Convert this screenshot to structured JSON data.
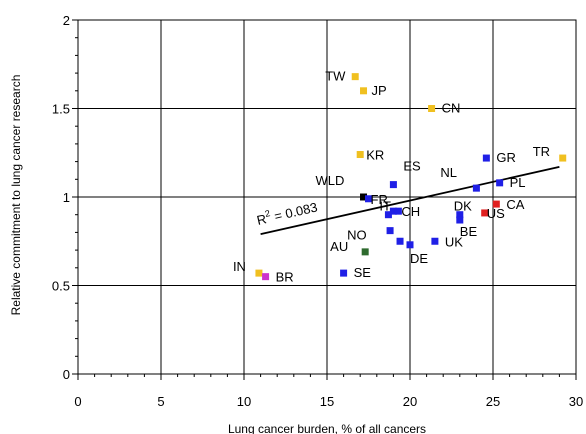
{
  "chart_data": {
    "type": "scatter",
    "xlabel": "Lung cancer burden, % of all cancers",
    "ylabel": "Relative commitment to lung cancer research",
    "xlim": [
      0,
      30
    ],
    "ylim": [
      0,
      2
    ],
    "xticks": [
      "0",
      "5",
      "10",
      "15",
      "20",
      "25",
      "30"
    ],
    "yticks": [
      "0",
      "0.5",
      "1",
      "1.5",
      "2"
    ],
    "grid": true,
    "colors": {
      "yellow": "#f0c020",
      "blue": "#1f1fe6",
      "red": "#e02020",
      "green": "#2e6a2e",
      "magenta": "#cc33cc",
      "black": "#000000"
    },
    "points": [
      {
        "label": "TW",
        "x": 16.7,
        "y": 1.68,
        "color": "yellow"
      },
      {
        "label": "JP",
        "x": 17.2,
        "y": 1.6,
        "color": "yellow"
      },
      {
        "label": "CN",
        "x": 21.3,
        "y": 1.5,
        "color": "yellow"
      },
      {
        "label": "KR",
        "x": 17.0,
        "y": 1.24,
        "color": "yellow"
      },
      {
        "label": "TR",
        "x": 29.2,
        "y": 1.22,
        "color": "yellow"
      },
      {
        "label": "IN",
        "x": 10.9,
        "y": 0.57,
        "color": "yellow"
      },
      {
        "label": "GR",
        "x": 24.6,
        "y": 1.22,
        "color": "blue"
      },
      {
        "label": "ES",
        "x": 19.0,
        "y": 1.07,
        "color": "blue"
      },
      {
        "label": "NL",
        "x": 24.0,
        "y": 1.05,
        "color": "blue"
      },
      {
        "label": "PL",
        "x": 25.4,
        "y": 1.08,
        "color": "blue"
      },
      {
        "label": "WLD",
        "x": 17.2,
        "y": 1.0,
        "color": "black"
      },
      {
        "label": "FR",
        "x": 17.5,
        "y": 0.99,
        "color": "blue"
      },
      {
        "label": "IT",
        "x": 18.7,
        "y": 0.9,
        "color": "blue"
      },
      {
        "label": "",
        "x": 19.0,
        "y": 0.92,
        "color": "blue"
      },
      {
        "label": "CH",
        "x": 19.3,
        "y": 0.92,
        "color": "blue"
      },
      {
        "label": "NO",
        "x": 18.8,
        "y": 0.81,
        "color": "blue"
      },
      {
        "label": "DK",
        "x": 23.0,
        "y": 0.9,
        "color": "blue"
      },
      {
        "label": "BE",
        "x": 23.0,
        "y": 0.87,
        "color": "blue"
      },
      {
        "label": "US",
        "x": 24.5,
        "y": 0.91,
        "color": "red"
      },
      {
        "label": "CA",
        "x": 25.2,
        "y": 0.96,
        "color": "red"
      },
      {
        "label": "AU",
        "x": 17.3,
        "y": 0.69,
        "color": "green"
      },
      {
        "label": "",
        "x": 19.4,
        "y": 0.75,
        "color": "blue"
      },
      {
        "label": "DE",
        "x": 20.0,
        "y": 0.73,
        "color": "blue"
      },
      {
        "label": "UK",
        "x": 21.5,
        "y": 0.75,
        "color": "blue"
      },
      {
        "label": "SE",
        "x": 16.0,
        "y": 0.57,
        "color": "blue"
      },
      {
        "label": "BR",
        "x": 11.3,
        "y": 0.55,
        "color": "magenta"
      }
    ],
    "trendline": {
      "x": [
        11,
        29
      ],
      "y": [
        0.79,
        1.17
      ]
    },
    "annotation": {
      "r2_prefix": "R",
      "r2_sup": "2",
      "r2_value": " = 0.083"
    }
  }
}
